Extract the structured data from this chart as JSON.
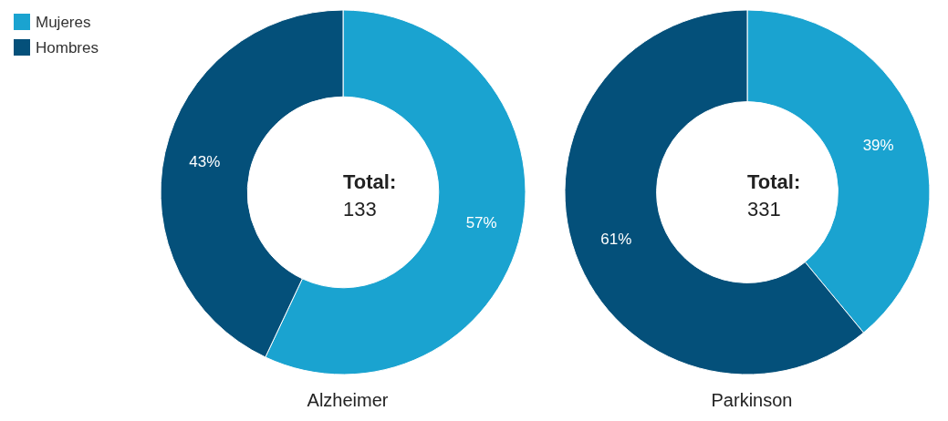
{
  "chart_data": [
    {
      "type": "donut",
      "title": "Alzheimer",
      "categories": [
        "Mujeres",
        "Hombres"
      ],
      "values": [
        57,
        43
      ],
      "value_labels": [
        "57%",
        "43%"
      ],
      "colors": [
        "#1aa3d0",
        "#04507a"
      ],
      "legend": "top left",
      "annotations": [
        "Total:",
        "133"
      ]
    },
    {
      "type": "donut",
      "title": "Parkinson",
      "categories": [
        null,
        null
      ],
      "values": [
        39,
        61
      ],
      "value_labels": [
        "39%",
        "61%"
      ],
      "colors": [
        "#1aa3d0",
        "#04507a"
      ],
      "annotations": [
        "Total:",
        "331"
      ]
    }
  ]
}
